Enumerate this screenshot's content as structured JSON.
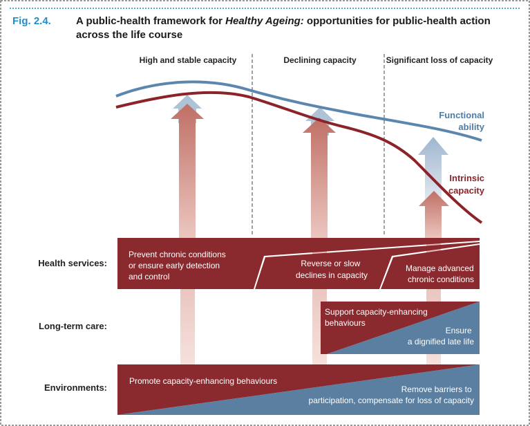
{
  "figure": {
    "number": "Fig. 2.4.",
    "title_line1_pre": "A public-health framework for ",
    "title_line1_em": "Healthy Ageing:",
    "title_line1_post": " opportunities for public-health action",
    "title_line2": "across the life course"
  },
  "phases": [
    "High and stable capacity",
    "Declining capacity",
    "Significant loss of capacity"
  ],
  "curves": {
    "functional_ability": [
      "Functional",
      "ability"
    ],
    "intrinsic_capacity": [
      "Intrinsic",
      "capacity"
    ]
  },
  "rows": {
    "health_services": "Health services:",
    "long_term_care": "Long-term care:",
    "environments": "Environments:"
  },
  "health_services": {
    "prevent": [
      "Prevent chronic conditions",
      "or ensure early detection",
      "and control"
    ],
    "reverse": [
      "Reverse or slow",
      "declines in capacity"
    ],
    "manage": [
      "Manage advanced",
      "chronic conditions"
    ]
  },
  "long_term_care": {
    "support": [
      "Support capacity-enhancing",
      "behaviours"
    ],
    "ensure": [
      "Ensure",
      "a dignified late life"
    ]
  },
  "environments": {
    "promote": "Promote capacity-enhancing behaviours",
    "remove": [
      "Remove barriers to",
      "participation, compensate for loss of capacity"
    ]
  },
  "colors": {
    "red": "#8B2A2E",
    "blue": "#5A7FA0",
    "title_blue": "#1F8FC9",
    "functional_line": "#5B86AE",
    "intrinsic_line": "#8B2329"
  }
}
